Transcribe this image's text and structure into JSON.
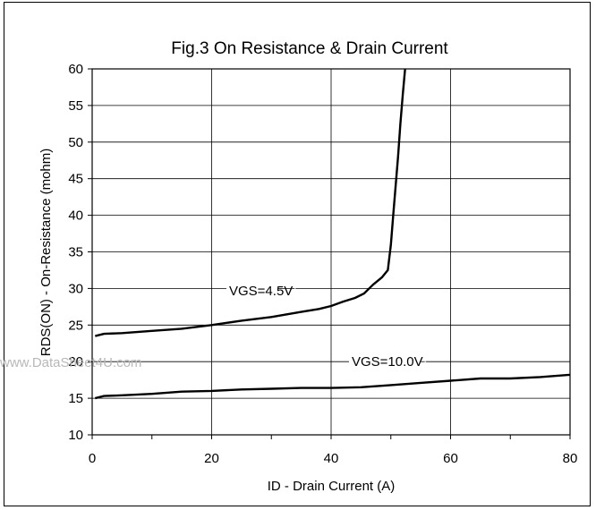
{
  "chart_data": {
    "type": "line",
    "title": "Fig.3 On Resistance & Drain Current",
    "xlabel": "ID - Drain Current (A)",
    "ylabel": "RDS(ON) - On-Resistance (mohm)",
    "xlim": [
      0,
      80
    ],
    "ylim": [
      10,
      60
    ],
    "xticks": [
      0,
      20,
      40,
      60,
      80
    ],
    "yticks": [
      10,
      15,
      20,
      25,
      30,
      35,
      40,
      45,
      50,
      55,
      60
    ],
    "grid": true,
    "series": [
      {
        "name": "VGS=4.5V",
        "x": [
          0.5,
          2,
          5,
          10,
          15,
          20,
          25,
          30,
          35,
          38,
          40,
          42,
          44,
          45.5,
          47,
          48.5,
          49.5,
          50,
          50.4,
          50.8,
          51.2,
          51.6,
          52,
          52.5
        ],
        "y": [
          23.5,
          23.8,
          23.9,
          24.2,
          24.5,
          25.0,
          25.6,
          26.1,
          26.8,
          27.2,
          27.6,
          28.2,
          28.7,
          29.3,
          30.5,
          31.5,
          32.5,
          36.0,
          40.0,
          44.0,
          48.0,
          52.5,
          56.5,
          61.0
        ]
      },
      {
        "name": "VGS=10.0V",
        "x": [
          0.5,
          2,
          5,
          10,
          15,
          20,
          25,
          30,
          35,
          40,
          45,
          50,
          55,
          60,
          65,
          70,
          75,
          80
        ],
        "y": [
          15.0,
          15.3,
          15.4,
          15.6,
          15.9,
          16.0,
          16.2,
          16.3,
          16.4,
          16.4,
          16.5,
          16.8,
          17.1,
          17.4,
          17.7,
          17.7,
          17.9,
          18.2
        ]
      }
    ],
    "annotations": [
      {
        "label": "VGS=4.5V",
        "series": 0
      },
      {
        "label": "VGS=10.0V",
        "series": 1
      }
    ]
  },
  "watermark": "www.DataSheet4U.com"
}
